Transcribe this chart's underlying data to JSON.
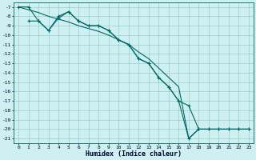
{
  "xlabel": "Humidex (Indice chaleur)",
  "background_color": "#cff0f0",
  "grid_color": "#99cccc",
  "line_color": "#006666",
  "xlim": [
    -0.5,
    23.5
  ],
  "ylim": [
    -21.5,
    -6.5
  ],
  "yticks": [
    -7,
    -8,
    -9,
    -10,
    -11,
    -12,
    -13,
    -14,
    -15,
    -16,
    -17,
    -18,
    -19,
    -20,
    -21
  ],
  "xticks": [
    0,
    1,
    2,
    3,
    4,
    5,
    6,
    7,
    8,
    9,
    10,
    11,
    12,
    13,
    14,
    15,
    16,
    17,
    18,
    19,
    20,
    21,
    22,
    23
  ],
  "line1_x": [
    0,
    1,
    2,
    3,
    4,
    5,
    6,
    7,
    8,
    9,
    10,
    11,
    12,
    13,
    14,
    15,
    16,
    17,
    18,
    19,
    20,
    21,
    22,
    23
  ],
  "line1_y": [
    -7,
    -7,
    -8.5,
    -9.5,
    -8,
    -7.5,
    -8.5,
    -9,
    -9,
    -9.5,
    -10.5,
    -11,
    -12.5,
    -13,
    -14.5,
    -15.5,
    -17,
    -17.5,
    -20,
    -20,
    -20,
    -20,
    -20,
    -20
  ],
  "line2_x": [
    1,
    2,
    3,
    4,
    5,
    6,
    7,
    8,
    9,
    10,
    11,
    12,
    13,
    14,
    15,
    16,
    17,
    18,
    19,
    20,
    21,
    22,
    23
  ],
  "line2_y": [
    -8.5,
    -8.5,
    -9.5,
    -8.2,
    -7.5,
    -8.5,
    -9,
    -9,
    -9.5,
    -10.5,
    -11,
    -12.5,
    -13,
    -14.5,
    -15.5,
    -17,
    -21,
    -20,
    -20,
    -20,
    -20,
    -20,
    -20
  ],
  "line3_x": [
    0,
    1,
    2,
    3,
    4,
    5,
    6,
    7,
    8,
    9,
    10,
    11,
    12,
    13,
    14,
    15,
    16,
    17,
    18,
    19,
    20,
    21,
    22,
    23
  ],
  "line3_y": [
    -7,
    -7.3,
    -7.6,
    -8.0,
    -8.3,
    -8.6,
    -9.0,
    -9.3,
    -9.6,
    -10.0,
    -10.5,
    -11.0,
    -11.8,
    -12.5,
    -13.5,
    -14.5,
    -15.5,
    -21.0,
    -20.0,
    -20.0,
    -20.0,
    -20.0,
    -20.0,
    -20.0
  ]
}
